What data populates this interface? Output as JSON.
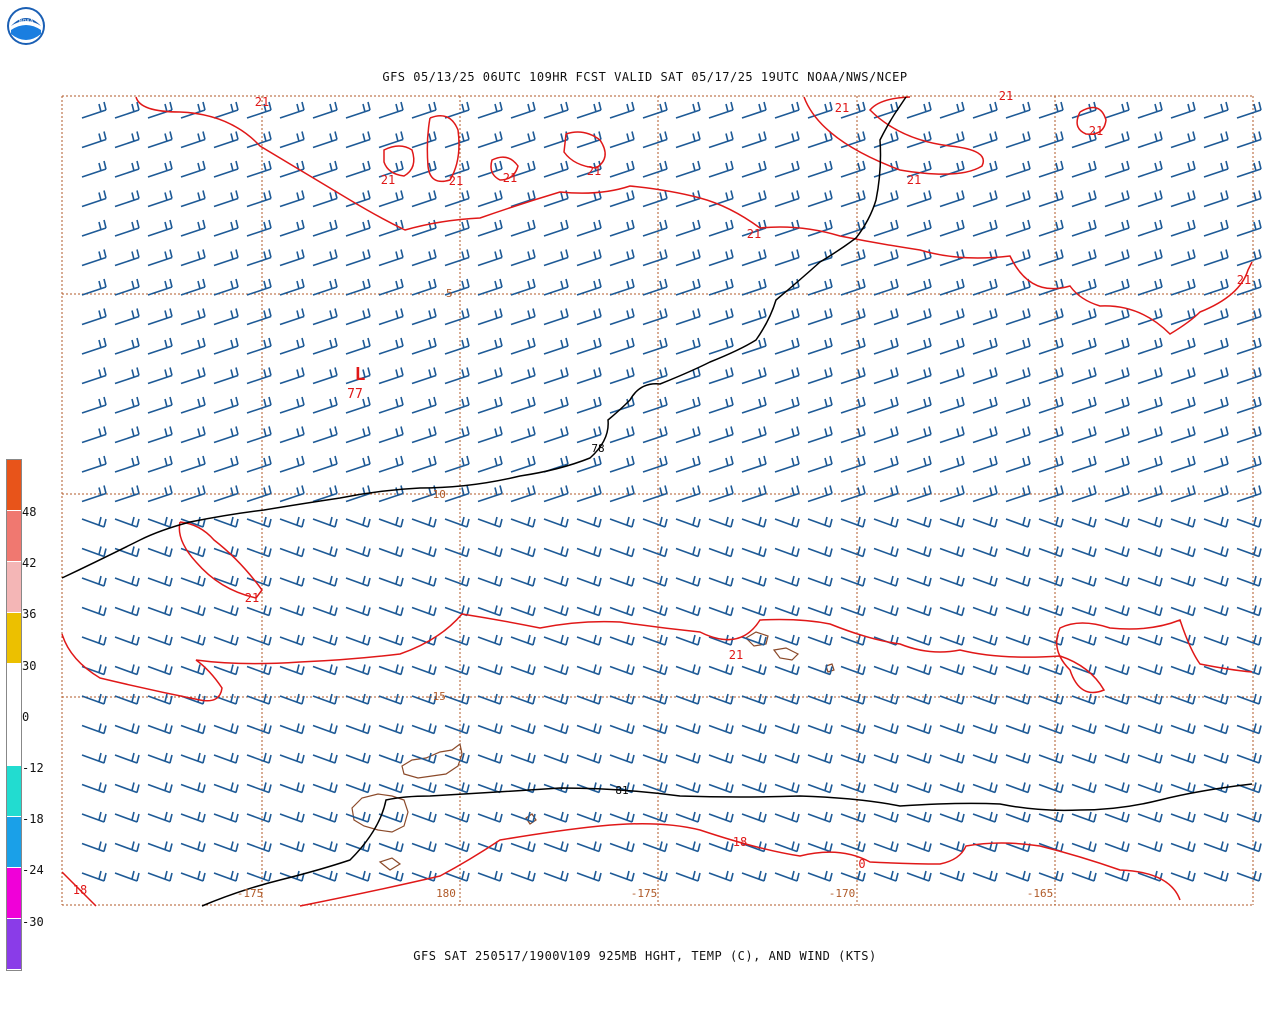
{
  "header": {
    "logo_label": "NOAA",
    "title": "GFS 05/13/25 06UTC 109HR FCST VALID SAT 05/17/25 19UTC NOAA/NWS/NCEP"
  },
  "footer": {
    "subtitle": "GFS SAT 250517/1900V109 925MB HGHT, TEMP (C), AND WIND (KTS)"
  },
  "colorbar": {
    "labels": [
      "48",
      "42",
      "36",
      "30",
      "0",
      "-12",
      "-18",
      "-24",
      "-30"
    ],
    "colors": [
      "#e8541a",
      "#f07870",
      "#f4b6b6",
      "#ecc000",
      "#ffffff",
      "#ffffff",
      "#22dcd0",
      "#1aa0e8",
      "#f000d8",
      "#8a3ce8"
    ]
  },
  "map": {
    "lat_labels": [
      "-5",
      "-10",
      "-15"
    ],
    "lon_labels": [
      "-175",
      "180",
      "-175",
      "-170",
      "-165"
    ],
    "height_labels": [
      "78",
      "81"
    ],
    "low_marker": {
      "symbol": "L",
      "value": "77"
    },
    "temp_labels": [
      "21",
      "21",
      "21",
      "21",
      "21",
      "21",
      "21",
      "21",
      "21",
      "21",
      "21",
      "21",
      "21",
      "18",
      "18",
      "0"
    ],
    "colors": {
      "barbs": "#1e5a96",
      "temp_contour": "#e01818",
      "height_contour": "#000000",
      "grid": "#b05a28",
      "land": "#8b4a2a"
    }
  }
}
